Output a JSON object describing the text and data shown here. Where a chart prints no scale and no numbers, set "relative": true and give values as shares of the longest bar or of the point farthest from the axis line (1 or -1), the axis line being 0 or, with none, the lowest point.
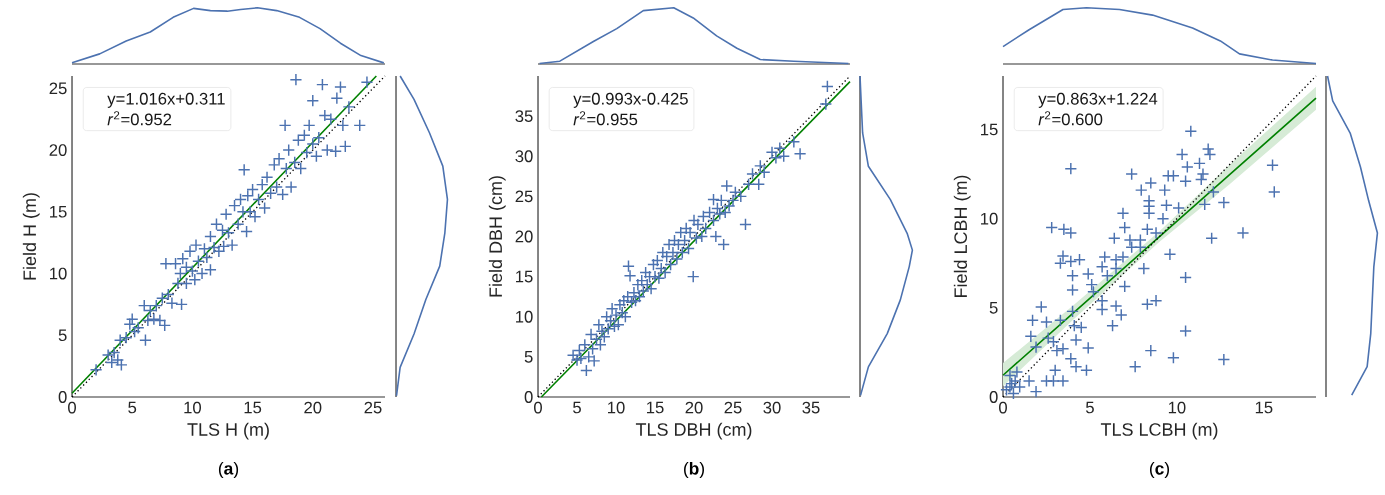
{
  "chart_data": [
    {
      "type": "line",
      "relative": true,
      "tick_labels": false,
      "xlim": [
        0,
        26
      ],
      "xticks": [
        0,
        5,
        10,
        15,
        20,
        25
      ],
      "series": [
        {
          "color": "#4c72b0",
          "x": [
            0,
            2.3,
            4.5,
            6.5,
            8.4,
            10.1,
            11.5,
            12.9,
            14.0,
            15.4,
            17.0,
            18.9,
            20.6,
            22.3,
            24.0,
            25.9
          ],
          "values": [
            0.02,
            0.18,
            0.41,
            0.57,
            0.83,
            0.99,
            0.95,
            0.94,
            0.97,
            1.0,
            0.95,
            0.83,
            0.63,
            0.37,
            0.15,
            0.02
          ]
        }
      ]
    },
    {
      "type": "scatter",
      "xlabel": "TLS H (m)",
      "ylabel": "Field H (m)",
      "xlim": [
        0,
        26
      ],
      "ylim": [
        0,
        26
      ],
      "xticks": [
        0,
        5,
        10,
        15,
        20,
        25
      ],
      "yticks": [
        0,
        5,
        10,
        15,
        20,
        25
      ],
      "annotations": [
        "y=1.016x+0.311",
        "*r*$^{2}$=0.952",
        "(**a**)"
      ],
      "series": [
        {
          "type": "scatter",
          "marker": "cross",
          "color": "#4c72b0",
          "x": [
            2.0,
            3.0,
            3.3,
            3.5,
            3.8,
            4.1,
            4.0,
            4.5,
            4.8,
            5.0,
            5.2,
            5.5,
            6.0,
            6.1,
            6.3,
            6.5,
            6.8,
            7.0,
            7.3,
            7.7,
            7.5,
            8.0,
            8.3,
            7.8,
            8.6,
            8.8,
            9.1,
            9.0,
            9.2,
            9.5,
            9.5,
            9.8,
            10.0,
            10.2,
            10.3,
            10.5,
            10.8,
            11.0,
            11.2,
            11.5,
            11.5,
            11.8,
            12.0,
            12.2,
            12.5,
            12.6,
            12.8,
            13.0,
            13.3,
            13.5,
            13.8,
            14.0,
            14.2,
            14.3,
            14.5,
            14.6,
            14.8,
            15.0,
            15.2,
            15.5,
            15.8,
            16.0,
            16.2,
            16.5,
            16.8,
            17.0,
            17.2,
            17.5,
            17.7,
            17.8,
            18.0,
            18.2,
            18.5,
            18.6,
            18.8,
            19.0,
            19.3,
            19.5,
            19.7,
            20.0,
            20.0,
            20.3,
            20.5,
            20.8,
            21.0,
            21.2,
            21.5,
            21.9,
            22.0,
            22.3,
            22.5,
            22.7,
            23.0,
            23.9,
            24.5
          ],
          "values": [
            2.2,
            3.4,
            2.8,
            3.6,
            3.0,
            2.6,
            4.6,
            4.8,
            5.9,
            6.3,
            5.3,
            5.6,
            7.4,
            4.6,
            6.2,
            7.0,
            6.3,
            7.4,
            6.2,
            5.8,
            8.0,
            8.3,
            7.6,
            10.8,
            10.8,
            9.2,
            7.5,
            10.0,
            11.2,
            10.5,
            9.2,
            11.8,
            10.2,
            9.5,
            12.3,
            11.0,
            10.0,
            12.0,
            11.3,
            13.0,
            10.3,
            12.1,
            14.0,
            11.8,
            13.5,
            12.2,
            14.8,
            13.3,
            12.3,
            15.5,
            14.0,
            16.0,
            15.0,
            18.4,
            13.4,
            16.3,
            15.0,
            16.8,
            14.6,
            16.0,
            17.2,
            15.3,
            17.8,
            16.5,
            18.8,
            17.0,
            19.3,
            16.4,
            22.0,
            18.5,
            20.0,
            17.0,
            19.0,
            25.7,
            20.8,
            18.5,
            21.2,
            19.8,
            22.0,
            20.5,
            24.0,
            19.5,
            21.0,
            25.3,
            22.8,
            20.0,
            22.5,
            19.9,
            24.2,
            25.1,
            22.0,
            20.3,
            23.5,
            22.0,
            25.5
          ]
        },
        {
          "type": "line",
          "color": "#008000",
          "x": [
            0,
            25.28
          ],
          "values": [
            0.3,
            26.0
          ]
        },
        {
          "type": "line",
          "color": "#000000",
          "line_style": "dotted",
          "x": [
            0,
            26
          ],
          "values": [
            0,
            26
          ]
        }
      ]
    },
    {
      "type": "line",
      "relative": true,
      "tick_labels": false,
      "orientation": "horizontal",
      "ylim": [
        0,
        26
      ],
      "yticks": [
        0,
        5,
        10,
        15,
        20,
        25
      ],
      "series": [
        {
          "color": "#4c72b0",
          "x": [
            0.1,
            2.4,
            5.1,
            7.9,
            10.6,
            13.3,
            16.0,
            18.7,
            21.4,
            24.1,
            26.0
          ],
          "values": [
            0.01,
            0.08,
            0.35,
            0.58,
            0.85,
            0.95,
            1.0,
            0.91,
            0.65,
            0.35,
            0.08
          ]
        }
      ]
    },
    {
      "type": "line",
      "relative": true,
      "tick_labels": false,
      "xlim": [
        0,
        40
      ],
      "xticks": [
        0,
        5,
        10,
        15,
        20,
        25,
        30,
        35
      ],
      "series": [
        {
          "color": "#4c72b0",
          "x": [
            0.2,
            2.8,
            7.1,
            10.1,
            13.5,
            17.4,
            19.9,
            22.9,
            25.5,
            28.5,
            32.8,
            39.8
          ],
          "values": [
            0.01,
            0.05,
            0.4,
            0.63,
            0.95,
            1.0,
            0.82,
            0.5,
            0.28,
            0.08,
            0.05,
            0.01
          ]
        }
      ]
    },
    {
      "type": "scatter",
      "xlabel": "TLS DBH (cm)",
      "ylabel": "Field DBH (cm)",
      "xlim": [
        0,
        40
      ],
      "ylim": [
        0,
        40
      ],
      "xticks": [
        0,
        5,
        10,
        15,
        20,
        25,
        30,
        35
      ],
      "yticks": [
        0,
        5,
        10,
        15,
        20,
        25,
        30,
        35
      ],
      "annotations": [
        "y=0.993x-0.425",
        "*r*$^{2}$=0.955",
        "(**b**)"
      ],
      "series": [
        {
          "type": "scatter",
          "marker": "cross",
          "color": "#4c72b0",
          "x": [
            4.5,
            5.0,
            5.3,
            5.5,
            6.0,
            6.2,
            6.5,
            6.8,
            7.0,
            7.2,
            7.5,
            7.8,
            8.0,
            8.2,
            8.5,
            8.8,
            9.0,
            9.3,
            9.5,
            9.8,
            10.0,
            10.3,
            10.5,
            10.8,
            11.0,
            11.2,
            11.6,
            11.8,
            11.5,
            12.0,
            12.3,
            12.5,
            12.8,
            13.0,
            13.3,
            13.5,
            13.8,
            14.0,
            14.3,
            14.5,
            14.8,
            15.0,
            15.3,
            15.5,
            15.8,
            16.0,
            16.3,
            16.5,
            16.8,
            17.0,
            17.3,
            17.5,
            17.8,
            18.0,
            18.3,
            18.5,
            18.8,
            19.0,
            19.3,
            19.5,
            19.9,
            20.0,
            20.3,
            20.5,
            21.0,
            21.2,
            21.5,
            22.0,
            22.5,
            22.5,
            22.8,
            23.0,
            23.3,
            23.5,
            23.8,
            24.0,
            24.2,
            24.5,
            25.0,
            25.3,
            26.0,
            26.6,
            27.0,
            27.5,
            28.3,
            28.5,
            29.0,
            30.0,
            30.5,
            31.0,
            31.5,
            32.8,
            33.6,
            36.9,
            37.1
          ],
          "values": [
            5.2,
            4.6,
            5.8,
            4.8,
            6.5,
            3.3,
            5.0,
            7.8,
            6.0,
            4.5,
            7.2,
            9.0,
            6.5,
            8.2,
            7.5,
            10.0,
            8.5,
            9.5,
            11.0,
            8.8,
            10.2,
            9.0,
            11.5,
            10.5,
            12.0,
            10.0,
            16.3,
            15.1,
            12.5,
            11.8,
            13.0,
            12.0,
            14.0,
            12.5,
            14.5,
            13.2,
            15.5,
            14.0,
            15.0,
            13.5,
            16.5,
            15.0,
            17.0,
            14.8,
            16.0,
            18.0,
            15.5,
            17.5,
            19.0,
            16.5,
            18.0,
            19.5,
            17.2,
            19.0,
            20.5,
            18.0,
            19.5,
            21.0,
            18.5,
            20.5,
            15.0,
            22.0,
            19.8,
            21.5,
            20.0,
            22.5,
            21.0,
            23.0,
            22.0,
            24.6,
            20.0,
            23.5,
            22.8,
            24.5,
            19.0,
            23.0,
            26.3,
            23.8,
            24.5,
            25.5,
            25.0,
            21.5,
            26.5,
            27.8,
            26.5,
            28.8,
            28.0,
            30.5,
            29.8,
            31.0,
            30.0,
            31.8,
            30.3,
            36.5,
            38.7
          ]
        },
        {
          "type": "line",
          "color": "#008000",
          "x": [
            0.43,
            40
          ],
          "values": [
            0.0,
            39.3
          ]
        },
        {
          "type": "line",
          "color": "#000000",
          "line_style": "dotted",
          "x": [
            0,
            40
          ],
          "values": [
            0,
            40
          ]
        }
      ]
    },
    {
      "type": "line",
      "relative": true,
      "tick_labels": false,
      "orientation": "horizontal",
      "ylim": [
        0,
        40
      ],
      "yticks": [
        0,
        5,
        10,
        15,
        20,
        25,
        30,
        35
      ],
      "series": [
        {
          "color": "#4c72b0",
          "x": [
            0.2,
            3.75,
            7.9,
            12.1,
            16.25,
            18.3,
            20.4,
            24.6,
            28.75,
            32.9,
            37.1,
            40.0
          ],
          "values": [
            0.01,
            0.16,
            0.52,
            0.77,
            0.94,
            1.0,
            0.9,
            0.58,
            0.16,
            0.05,
            0.02,
            0.0
          ]
        }
      ]
    },
    {
      "type": "line",
      "relative": true,
      "tick_labels": false,
      "xlim": [
        0,
        18
      ],
      "xticks": [
        0,
        5,
        10,
        15
      ],
      "series": [
        {
          "color": "#4c72b0",
          "x": [
            0,
            1.5,
            3.45,
            4.8,
            6.7,
            8.6,
            10.9,
            12.5,
            13.6,
            15.5,
            18.0
          ],
          "values": [
            0.31,
            0.61,
            0.97,
            1.0,
            0.97,
            0.87,
            0.64,
            0.41,
            0.18,
            0.07,
            0.01
          ]
        }
      ]
    },
    {
      "type": "scatter",
      "xlabel": "TLS LCBH (m)",
      "ylabel": "Field LCBH (m)",
      "xlim": [
        0,
        18
      ],
      "ylim": [
        0,
        18
      ],
      "xticks": [
        0,
        5,
        10,
        15
      ],
      "yticks": [
        0,
        5,
        10,
        15
      ],
      "annotations": [
        "y=0.863x+1.224",
        "*r*$^{2}$=0.600",
        "(**c**)"
      ],
      "series": [
        {
          "type": "scatter",
          "marker": "cross",
          "color": "#4c72b0",
          "x": [
            10.8,
            10.3,
            11.8,
            11.9,
            11.3,
            10.6,
            11.5,
            11.4,
            9.8,
            9.5,
            10.5,
            15.5,
            15.6,
            7.4,
            3.9,
            8.5,
            7.95,
            9.3,
            12.1,
            12.7,
            11.6,
            8.4,
            8.4,
            9.4,
            10.1,
            6.9,
            8.4,
            9.2,
            8.3,
            8.8,
            7.0,
            2.8,
            3.5,
            3.9,
            13.8,
            12.0,
            6.4,
            7.3,
            7.9,
            7.4,
            7.9,
            9.6,
            3.45,
            3.3,
            3.9,
            4.4,
            5.85,
            6.5,
            6.9,
            8.1,
            5.7,
            6.5,
            4.0,
            4.9,
            6.0,
            10.5,
            7.0,
            5.1,
            4.0,
            5.2,
            5.7,
            6.5,
            6.8,
            8.3,
            8.8,
            5.7,
            2.2,
            4.0,
            3.3,
            2.5,
            1.7,
            4.1,
            4.5,
            6.3,
            10.5,
            4.2,
            1.6,
            2.6,
            2.9,
            1.9,
            3.1,
            3.45,
            4.9,
            8.5,
            9.8,
            12.7,
            7.6,
            3.9,
            4.2,
            4.8,
            3.0,
            1.5,
            2.5,
            3.45,
            2.9,
            0.8,
            0.4,
            0.7,
            0.4,
            0.96,
            0.2,
            0.6,
            1.9,
            0.5
          ],
          "values": [
            14.9,
            13.6,
            13.9,
            13.6,
            13.1,
            12.9,
            12.5,
            12.2,
            12.4,
            12.4,
            12.1,
            13.0,
            11.5,
            12.5,
            12.8,
            12.0,
            11.6,
            11.6,
            11.5,
            10.9,
            10.8,
            11.0,
            10.7,
            10.75,
            10.6,
            10.3,
            10.3,
            10.0,
            9.4,
            9.2,
            9.5,
            9.5,
            9.4,
            9.2,
            9.2,
            8.9,
            8.9,
            8.8,
            8.8,
            8.4,
            8.4,
            8.0,
            7.9,
            7.5,
            7.6,
            7.7,
            7.85,
            7.7,
            7.85,
            7.2,
            7.3,
            7.2,
            6.8,
            6.9,
            6.8,
            6.7,
            6.2,
            6.3,
            6.0,
            5.9,
            5.4,
            5.1,
            4.6,
            5.2,
            5.4,
            4.9,
            5.05,
            4.8,
            4.3,
            4.2,
            4.3,
            4.0,
            3.9,
            4.0,
            3.7,
            3.2,
            3.4,
            3.3,
            3.1,
            2.8,
            2.6,
            2.7,
            2.75,
            2.6,
            2.2,
            2.1,
            1.7,
            2.15,
            1.7,
            1.5,
            1.5,
            0.9,
            0.9,
            0.9,
            0.9,
            1.4,
            1.2,
            0.9,
            0.56,
            0.56,
            0.4,
            0.2,
            0.3,
            0.75
          ]
        },
        {
          "type": "line",
          "color": "#008000",
          "x": [
            0,
            4,
            9,
            13,
            18
          ],
          "values": [
            1.22,
            4.68,
            8.99,
            12.44,
            16.76
          ],
          "lower": [
            0.6,
            4.3,
            8.7,
            11.9,
            16.1
          ],
          "upper": [
            1.9,
            5.1,
            9.3,
            13.0,
            17.4
          ]
        },
        {
          "type": "line",
          "color": "#000000",
          "line_style": "dotted",
          "x": [
            0,
            18
          ],
          "values": [
            0,
            18
          ]
        }
      ]
    },
    {
      "type": "line",
      "relative": true,
      "tick_labels": false,
      "orientation": "horizontal",
      "ylim": [
        0,
        18
      ],
      "yticks": [
        0,
        5,
        10,
        15
      ],
      "series": [
        {
          "color": "#4c72b0",
          "x": [
            0.1,
            1.7,
            3.55,
            7.3,
            9.2,
            11.0,
            12.9,
            14.8,
            16.6,
            18.0
          ],
          "values": [
            0.5,
            0.8,
            0.87,
            0.93,
            1.0,
            0.83,
            0.67,
            0.47,
            0.13,
            0.03
          ]
        }
      ]
    }
  ]
}
